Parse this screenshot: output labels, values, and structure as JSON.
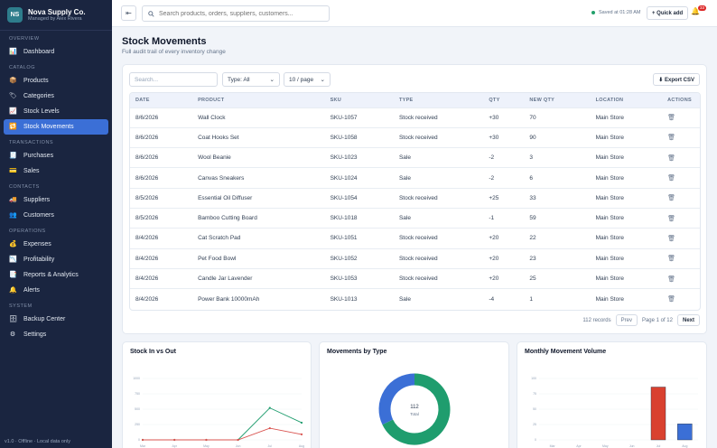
{
  "brand": {
    "initials": "NS",
    "name": "Nova Supply Co.",
    "sub": "Managed by Alex Rivera"
  },
  "nav": [
    {
      "section": "Overview",
      "items": [
        {
          "label": "Dashboard",
          "icon": "chart-icon",
          "glyph": "📊",
          "active": false
        }
      ]
    },
    {
      "section": "Catalog",
      "items": [
        {
          "label": "Products",
          "icon": "box-icon",
          "glyph": "📦",
          "active": false
        },
        {
          "label": "Categories",
          "icon": "tag-icon",
          "glyph": "🏷",
          "active": false
        },
        {
          "label": "Stock Levels",
          "icon": "chart-line-icon",
          "glyph": "📈",
          "active": false
        },
        {
          "label": "Stock Movements",
          "icon": "swap-icon",
          "glyph": "🔁",
          "active": true
        }
      ]
    },
    {
      "section": "Transactions",
      "items": [
        {
          "label": "Purchases",
          "icon": "receipt-icon",
          "glyph": "🧾",
          "active": false
        },
        {
          "label": "Sales",
          "icon": "card-icon",
          "glyph": "💳",
          "active": false
        }
      ]
    },
    {
      "section": "Contacts",
      "items": [
        {
          "label": "Suppliers",
          "icon": "truck-icon",
          "glyph": "🚚",
          "active": false
        },
        {
          "label": "Customers",
          "icon": "people-icon",
          "glyph": "👥",
          "active": false
        }
      ]
    },
    {
      "section": "Operations",
      "items": [
        {
          "label": "Expenses",
          "icon": "money-bag-icon",
          "glyph": "💰",
          "active": false
        },
        {
          "label": "Profitability",
          "icon": "trend-icon",
          "glyph": "📉",
          "active": false
        },
        {
          "label": "Reports & Analytics",
          "icon": "report-icon",
          "glyph": "📑",
          "active": false
        },
        {
          "label": "Alerts",
          "icon": "bell-icon",
          "glyph": "🔔",
          "active": false
        }
      ]
    },
    {
      "section": "System",
      "items": [
        {
          "label": "Backup Center",
          "icon": "database-icon",
          "glyph": "🗄",
          "active": false
        },
        {
          "label": "Settings",
          "icon": "gear-icon",
          "glyph": "⚙",
          "active": false
        }
      ]
    }
  ],
  "footer": "v1.0 · Offline · Local data only",
  "topbar": {
    "search_placeholder": "Search products, orders, suppliers, customers...",
    "saved": "Saved at 01:28 AM",
    "quick_add": "+ Quick add",
    "alert_count": "33"
  },
  "page": {
    "title": "Stock Movements",
    "subtitle": "Full audit trail of every inventory change"
  },
  "filters": {
    "search_placeholder": "Search...",
    "type": "Type: All",
    "per_page": "10 / page",
    "export": "⬇ Export CSV"
  },
  "table": {
    "headers": [
      "DATE",
      "PRODUCT",
      "SKU",
      "TYPE",
      "QTY",
      "NEW QTY",
      "LOCATION",
      "ACTIONS"
    ],
    "rows": [
      [
        "8/6/2026",
        "Wall Clock",
        "SKU-1057",
        "Stock received",
        "+30",
        "70",
        "Main Store"
      ],
      [
        "8/6/2026",
        "Coat Hooks Set",
        "SKU-1058",
        "Stock received",
        "+30",
        "90",
        "Main Store"
      ],
      [
        "8/6/2026",
        "Wool Beanie",
        "SKU-1023",
        "Sale",
        "-2",
        "3",
        "Main Store"
      ],
      [
        "8/6/2026",
        "Canvas Sneakers",
        "SKU-1024",
        "Sale",
        "-2",
        "6",
        "Main Store"
      ],
      [
        "8/5/2026",
        "Essential Oil Diffuser",
        "SKU-1054",
        "Stock received",
        "+25",
        "33",
        "Main Store"
      ],
      [
        "8/5/2026",
        "Bamboo Cutting Board",
        "SKU-1018",
        "Sale",
        "-1",
        "59",
        "Main Store"
      ],
      [
        "8/4/2026",
        "Cat Scratch Pad",
        "SKU-1051",
        "Stock received",
        "+20",
        "22",
        "Main Store"
      ],
      [
        "8/4/2026",
        "Pet Food Bowl",
        "SKU-1052",
        "Stock received",
        "+20",
        "23",
        "Main Store"
      ],
      [
        "8/4/2026",
        "Candle Jar Lavender",
        "SKU-1053",
        "Stock received",
        "+20",
        "25",
        "Main Store"
      ],
      [
        "8/4/2026",
        "Power Bank 10000mAh",
        "SKU-1013",
        "Sale",
        "-4",
        "1",
        "Main Store"
      ]
    ]
  },
  "pager": {
    "records": "112 records",
    "prev": "Prev",
    "page": "Page 1 of 12",
    "next": "Next"
  },
  "charts": {
    "stock": {
      "title": "Stock In vs Out",
      "months": [
        "Mar",
        "Apr",
        "May",
        "Jun",
        "Jul",
        "Aug"
      ],
      "yticks": [
        "0",
        "250",
        "500",
        "750",
        "1000"
      ],
      "ymax": 1000,
      "in_values": [
        0,
        0,
        0,
        0,
        520,
        280
      ],
      "out_values": [
        0,
        0,
        0,
        0,
        190,
        90
      ],
      "in_color": "#1f9d6e",
      "out_color": "#d9534f"
    },
    "types": {
      "title": "Movements by Type",
      "total": "112",
      "total_label": "Total",
      "slices": [
        {
          "value": 76,
          "color": "#1f9d6e"
        },
        {
          "value": 36,
          "color": "#3b6fd6"
        }
      ]
    },
    "monthly": {
      "title": "Monthly Movement Volume",
      "months": [
        "Mar",
        "Apr",
        "May",
        "Jun",
        "Jul",
        "Aug"
      ],
      "yticks": [
        "0",
        "25",
        "50",
        "75",
        "100"
      ],
      "ymax": 100,
      "values": [
        0,
        0,
        0,
        0,
        86,
        26
      ],
      "colors": [
        "#d9412f",
        "#d9412f",
        "#d9412f",
        "#d9412f",
        "#d9412f",
        "#3b6fd6"
      ]
    }
  }
}
